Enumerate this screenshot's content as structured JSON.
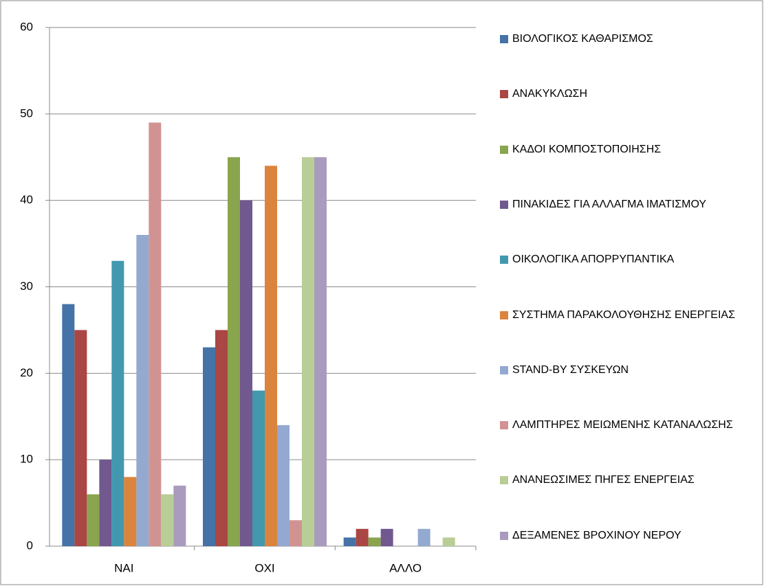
{
  "chart_data": {
    "type": "bar",
    "categories": [
      "ΝΑΙ",
      "ΟΧΙ",
      "ΑΛΛΟ"
    ],
    "series": [
      {
        "name": "ΒΙΟΛΟΓΙΚΟΣ ΚΑΘΑΡΙΣΜΟΣ",
        "color": "#4572a7",
        "values": [
          28,
          23,
          1
        ]
      },
      {
        "name": "ΑΝΑΚΥΚΛΩΣΗ",
        "color": "#aa4643",
        "values": [
          25,
          25,
          2
        ]
      },
      {
        "name": "ΚΑΔΟΙ ΚΟΜΠΟΣΤΟΠΟΙΗΣΗΣ",
        "color": "#89a54e",
        "values": [
          6,
          45,
          1
        ]
      },
      {
        "name": "ΠΙΝΑΚΙΔΕΣ ΓΙΑ ΑΛΛΑΓΜΑ ΙΜΑΤΙΣΜΟΥ",
        "color": "#71588f",
        "values": [
          10,
          40,
          2
        ]
      },
      {
        "name": "ΟΙΚΟΛΟΓΙΚΑ ΑΠΟΡΡΥΠΑΝΤΙΚΑ",
        "color": "#4198af",
        "values": [
          33,
          18,
          0
        ]
      },
      {
        "name": "ΣΥΣΤΗΜΑ ΠΑΡΑΚΟΛΟΥΘΗΣΗΣ ΕΝΕΡΓΕΙΑΣ",
        "color": "#db843d",
        "values": [
          8,
          44,
          0
        ]
      },
      {
        "name": "STAND-BY ΣΥΣΚΕΥΩΝ",
        "color": "#93a9cf",
        "values": [
          36,
          14,
          2
        ]
      },
      {
        "name": "ΛΑΜΠΤΗΡΕΣ ΜΕΙΩΜΕΝΗΣ ΚΑΤΑΝΑΛΩΣΗΣ",
        "color": "#d19392",
        "values": [
          49,
          3,
          0
        ]
      },
      {
        "name": "ΑΝΑΝΕΩΣΙΜΕΣ ΠΗΓΕΣ ΕΝΕΡΓΕΙΑΣ",
        "color": "#b9cd96",
        "values": [
          6,
          45,
          1
        ]
      },
      {
        "name": "ΔΕΞΑΜΕΝΕΣ ΒΡΟΧΙΝΟΥ ΝΕΡΟΥ",
        "color": "#a99bbd",
        "values": [
          7,
          45,
          0
        ]
      }
    ],
    "ylim": [
      0,
      60
    ],
    "yticks": [
      0,
      10,
      20,
      30,
      40,
      50,
      60
    ],
    "grid": true,
    "legend": "right"
  }
}
